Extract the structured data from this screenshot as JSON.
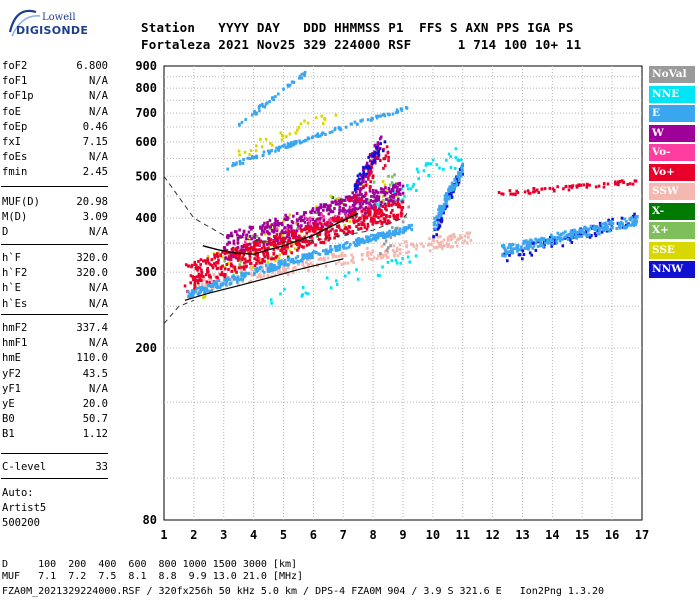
{
  "logo": {
    "line1": "Lowell",
    "line2": "DIGISONDE"
  },
  "header": {
    "row1": "Station   YYYY DAY   DDD HHMMSS P1  FFS S AXN PPS IGA PS",
    "row2": "Fortaleza 2021 Nov25 329 224000 RSF      1 714 100 10+ 11"
  },
  "params_group1": [
    {
      "k": "foF2",
      "v": "6.800"
    },
    {
      "k": "foF1",
      "v": "N/A"
    },
    {
      "k": "foF1p",
      "v": "N/A"
    },
    {
      "k": "foE",
      "v": "N/A"
    },
    {
      "k": "foEp",
      "v": "0.46"
    },
    {
      "k": "fxI",
      "v": "7.15"
    },
    {
      "k": "foEs",
      "v": "N/A"
    },
    {
      "k": "fmin",
      "v": "2.45"
    }
  ],
  "params_group2": [
    {
      "k": "MUF(D)",
      "v": "20.98"
    },
    {
      "k": "M(D)",
      "v": "3.09"
    },
    {
      "k": "D",
      "v": "N/A"
    }
  ],
  "params_group3": [
    {
      "k": "h`F",
      "v": "320.0"
    },
    {
      "k": "h`F2",
      "v": "320.0"
    },
    {
      "k": "h`E",
      "v": "N/A"
    },
    {
      "k": "h`Es",
      "v": "N/A"
    }
  ],
  "params_group4": [
    {
      "k": "hmF2",
      "v": "337.4"
    },
    {
      "k": "hmF1",
      "v": "N/A"
    },
    {
      "k": "hmE",
      "v": "110.0"
    },
    {
      "k": "yF2",
      "v": "43.5"
    },
    {
      "k": "yF1",
      "v": "N/A"
    },
    {
      "k": "yE",
      "v": "20.0"
    },
    {
      "k": "B0",
      "v": "50.7"
    },
    {
      "k": "B1",
      "v": "1.12"
    }
  ],
  "params_group5": [
    {
      "k": "C-level",
      "v": "33"
    }
  ],
  "misc": {
    "line1": "Auto:",
    "line2": "Artist5",
    "line3": "500200"
  },
  "legend": [
    {
      "label": "NoVal",
      "color": "#9a9a9a"
    },
    {
      "label": "NNE",
      "color": "#00e5f5"
    },
    {
      "label": "E",
      "color": "#3aa6f0"
    },
    {
      "label": "W",
      "color": "#a0009a"
    },
    {
      "label": "Vo-",
      "color": "#ff3ca0"
    },
    {
      "label": "Vo+",
      "color": "#e8002a"
    },
    {
      "label": "SSW",
      "color": "#f5b8b0"
    },
    {
      "label": "X-",
      "color": "#007a00"
    },
    {
      "label": "X+",
      "color": "#7fbf5a"
    },
    {
      "label": "SSE",
      "color": "#d8d800"
    },
    {
      "label": "NNW",
      "color": "#1010d0"
    }
  ],
  "footer": {
    "line1": "D     100  200  400  600  800 1000 1500 3000 [km]",
    "line2": "MUF   7.1  7.2  7.5  8.1  8.8  9.9 13.0 21.0 [MHz]",
    "line3": "FZA0M_2021329224000.RSF / 320fx256h 50 kHz 5.0 km / DPS-4 FZA0M 904 / 3.9 S 321.6 E   Ion2Png 1.3.20"
  },
  "chart_data": {
    "type": "scatter",
    "title": "",
    "xlabel": "",
    "ylabel": "",
    "xlim": [
      1,
      17
    ],
    "ylim": [
      80,
      900
    ],
    "y_scale": "log",
    "x_ticks": [
      1,
      2,
      3,
      4,
      5,
      6,
      7,
      8,
      9,
      10,
      11,
      12,
      13,
      14,
      15,
      16,
      17
    ],
    "y_ticks": [
      80,
      200,
      300,
      400,
      500,
      600,
      700,
      800,
      900
    ],
    "y_minor_ticks": [
      100,
      150,
      250,
      350,
      450,
      550,
      650,
      750,
      850
    ],
    "grid": true,
    "legend_placement": "right",
    "series": [
      {
        "color_key": "E",
        "clusters": [
          {
            "x": [
              1.8,
              9.3
            ],
            "y": [
              265,
              380
            ],
            "n": 340,
            "spread": 6
          },
          {
            "x": [
              3.0,
              9.2
            ],
            "y": [
              520,
              720
            ],
            "n": 120,
            "spread": 6
          },
          {
            "x": [
              3.5,
              5.8
            ],
            "y": [
              650,
              870
            ],
            "n": 40,
            "spread": 10
          },
          {
            "x": [
              10.0,
              11.0
            ],
            "y": [
              380,
              520
            ],
            "n": 90,
            "spread": 15
          },
          {
            "x": [
              12.3,
              16.9
            ],
            "y": [
              335,
              395
            ],
            "n": 220,
            "spread": 10
          }
        ]
      },
      {
        "color_key": "Vo+",
        "clusters": [
          {
            "x": [
              1.7,
              9.0
            ],
            "y": [
              290,
              420
            ],
            "n": 520,
            "spread": 22
          },
          {
            "x": [
              12.2,
              16.8
            ],
            "y": [
              455,
              485
            ],
            "n": 70,
            "spread": 6
          },
          {
            "x": [
              7.2,
              8.6
            ],
            "y": [
              420,
              580
            ],
            "n": 40,
            "spread": 30
          }
        ]
      },
      {
        "color_key": "W",
        "clusters": [
          {
            "x": [
              3.0,
              9.0
            ],
            "y": [
              340,
              460
            ],
            "n": 420,
            "spread": 25
          },
          {
            "x": [
              7.3,
              8.3
            ],
            "y": [
              430,
              600
            ],
            "n": 80,
            "spread": 30
          }
        ]
      },
      {
        "color_key": "SSW",
        "clusters": [
          {
            "x": [
              2.0,
              11.3
            ],
            "y": [
              280,
              360
            ],
            "n": 260,
            "spread": 12
          }
        ]
      },
      {
        "color_key": "NNW",
        "clusters": [
          {
            "x": [
              10.0,
              11.0
            ],
            "y": [
              360,
              520
            ],
            "n": 80,
            "spread": 15
          },
          {
            "x": [
              12.3,
              16.8
            ],
            "y": [
              320,
              400
            ],
            "n": 90,
            "spread": 12
          },
          {
            "x": [
              7.4,
              8.4
            ],
            "y": [
              480,
              600
            ],
            "n": 40,
            "spread": 20
          }
        ]
      },
      {
        "color_key": "SSE",
        "clusters": [
          {
            "x": [
              2.0,
              9.0
            ],
            "y": [
              280,
              480
            ],
            "n": 90,
            "spread": 40
          },
          {
            "x": [
              3.5,
              6.8
            ],
            "y": [
              560,
              700
            ],
            "n": 30,
            "spread": 20
          }
        ]
      },
      {
        "color_key": "NNE",
        "clusters": [
          {
            "x": [
              7.0,
              11.0
            ],
            "y": [
              380,
              560
            ],
            "n": 60,
            "spread": 30
          },
          {
            "x": [
              4.5,
              9.5
            ],
            "y": [
              260,
              320
            ],
            "n": 30,
            "spread": 10
          }
        ]
      },
      {
        "color_key": "X+",
        "clusters": [
          {
            "x": [
              3.0,
              9.0
            ],
            "y": [
              300,
              480
            ],
            "n": 40,
            "spread": 40
          }
        ]
      },
      {
        "color_key": "X-",
        "clusters": [
          {
            "x": [
              3.0,
              9.0
            ],
            "y": [
              300,
              480
            ],
            "n": 25,
            "spread": 40
          }
        ]
      },
      {
        "color_key": "NoVal",
        "clusters": [
          {
            "x": [
              8.2,
              9.2
            ],
            "y": [
              330,
              420
            ],
            "n": 20,
            "spread": 20
          }
        ]
      },
      {
        "color_key": "Vo-",
        "clusters": [
          {
            "x": [
              3.0,
              8.0
            ],
            "y": [
              320,
              420
            ],
            "n": 40,
            "spread": 25
          }
        ]
      }
    ],
    "trace_fitted": {
      "x": [
        2.3,
        2.8,
        3.4,
        4.0,
        4.5,
        5.0,
        5.5,
        6.0,
        6.5,
        7.0,
        7.5
      ],
      "y": [
        345,
        338,
        332,
        330,
        338,
        345,
        355,
        365,
        380,
        395,
        410
      ]
    },
    "profile_line": {
      "x": [
        1.7,
        2.5,
        3.5,
        4.5,
        5.5,
        6.5,
        7.0
      ],
      "y": [
        258,
        268,
        279,
        291,
        304,
        316,
        322
      ]
    },
    "dashed_curve": {
      "x": [
        1.0,
        2.0,
        3.0,
        4.0,
        5.0,
        6.0,
        7.0,
        8.0,
        9.0,
        9.2
      ],
      "y": [
        500,
        400,
        365,
        355,
        352,
        355,
        365,
        375,
        400,
        415
      ]
    },
    "dashed_lower": {
      "x": [
        1.0,
        1.5,
        2.0
      ],
      "y": [
        228,
        250,
        258
      ]
    }
  }
}
